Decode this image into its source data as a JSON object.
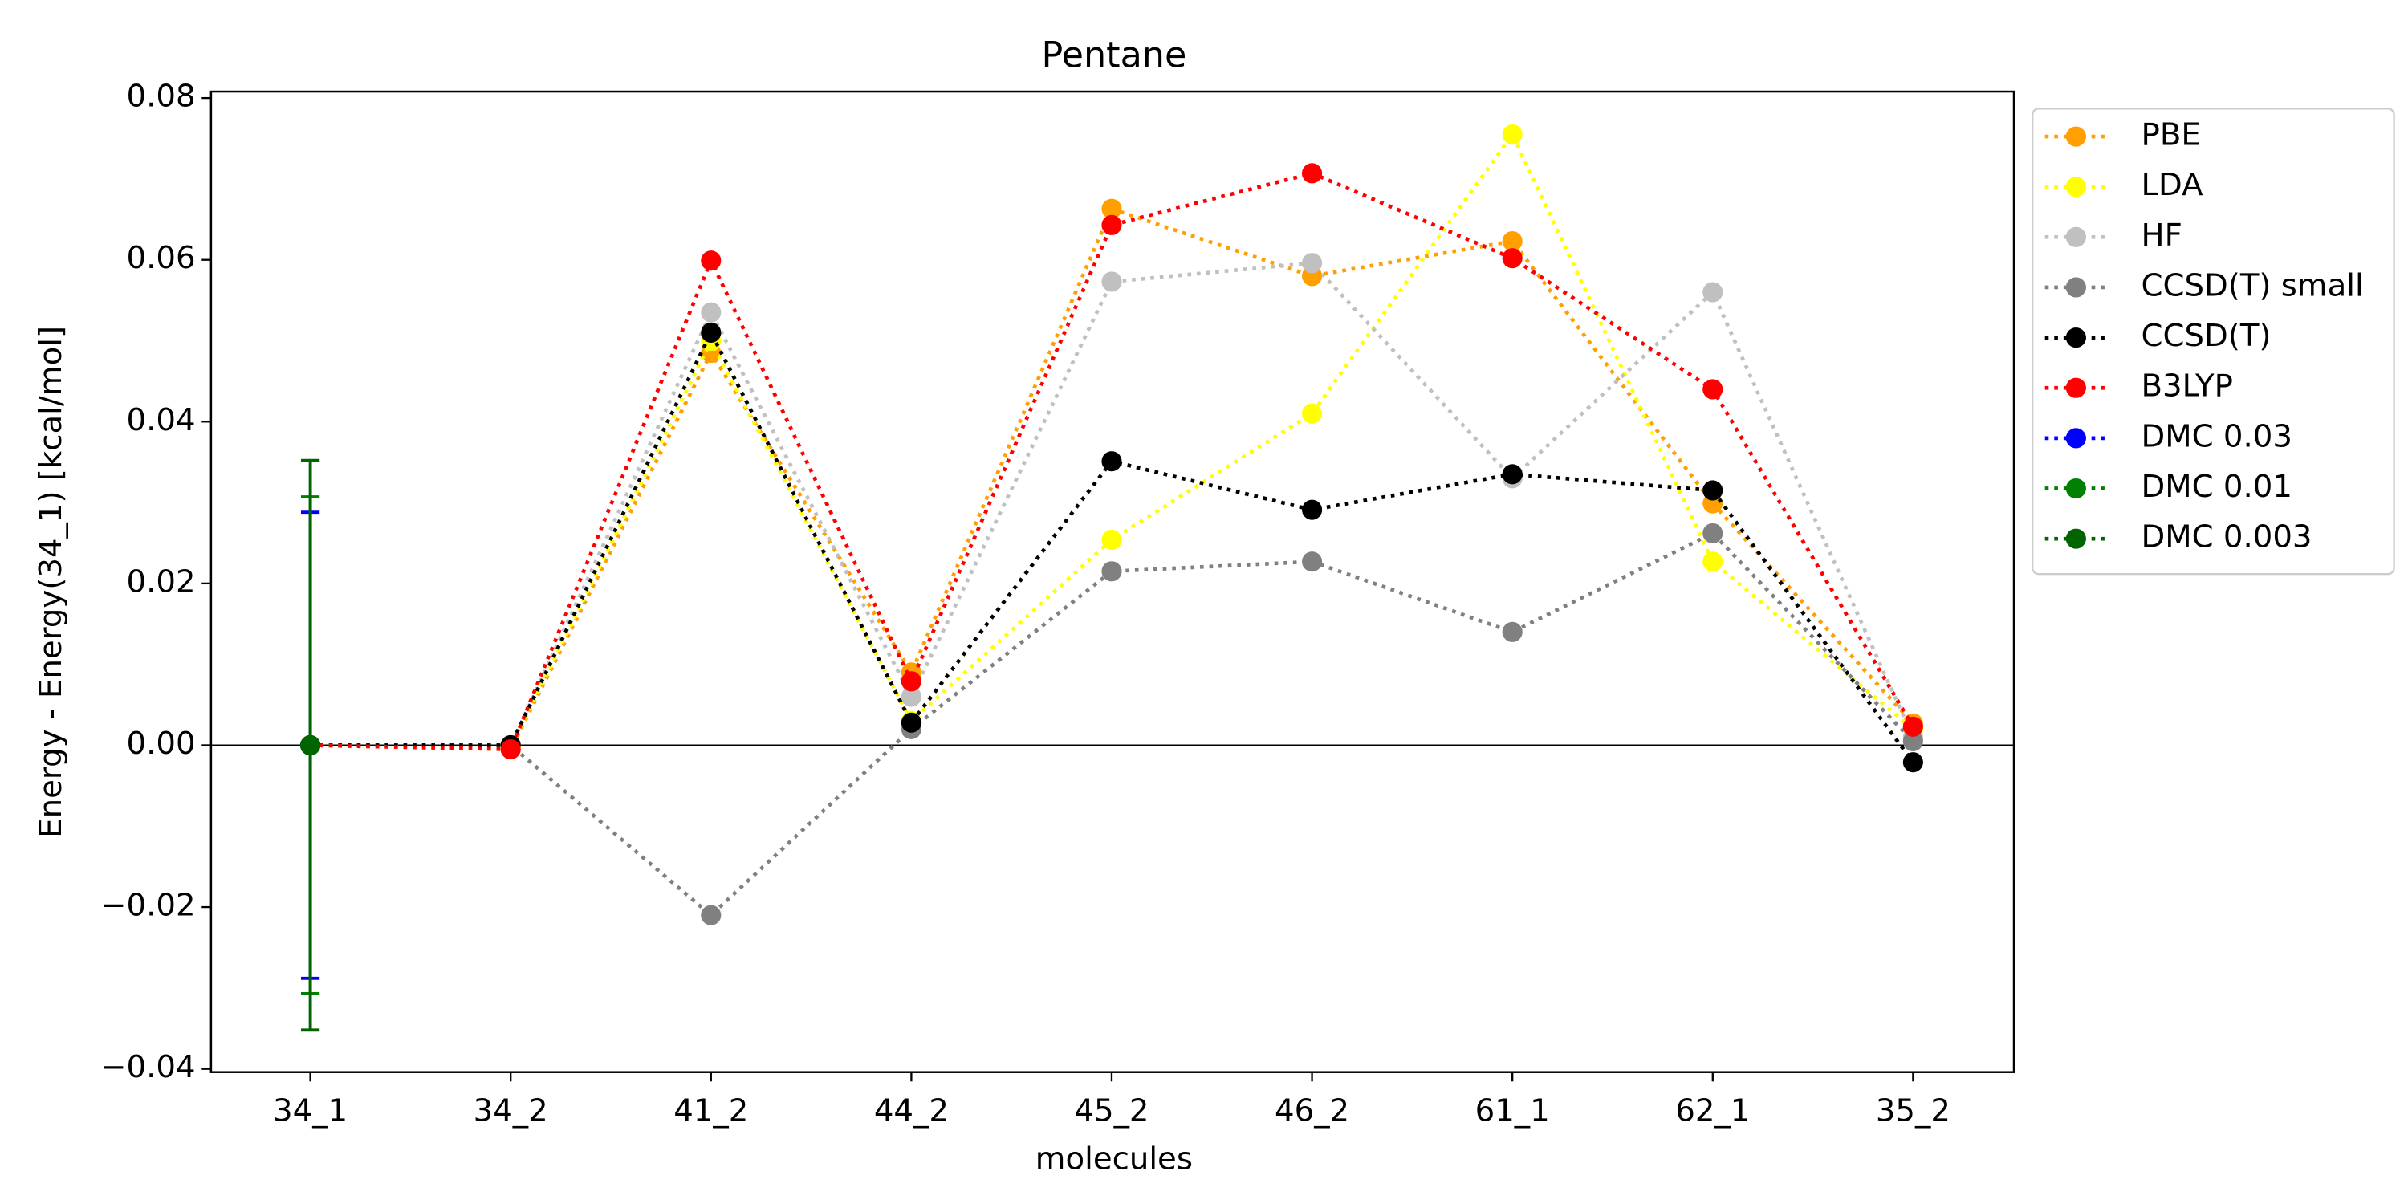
{
  "chart_data": {
    "type": "line",
    "title": "Pentane",
    "xlabel": "molecules",
    "ylabel": "Energy - Energy(34_1) [kcal/mol]",
    "categories": [
      "34_1",
      "34_2",
      "41_2",
      "44_2",
      "45_2",
      "46_2",
      "61_1",
      "62_1",
      "35_2"
    ],
    "ylim": [
      -0.0404,
      0.0808
    ],
    "yticks": [
      {
        "value": -0.04,
        "label": "−0.04"
      },
      {
        "value": -0.02,
        "label": "−0.02"
      },
      {
        "value": 0,
        "label": "0.00"
      },
      {
        "value": 0.02,
        "label": "0.02"
      },
      {
        "value": 0.04,
        "label": "0.04"
      },
      {
        "value": 0.06,
        "label": "0.06"
      },
      {
        "value": 0.08,
        "label": "0.08"
      }
    ],
    "axhline": 0,
    "legend": "outside-upper-right",
    "series": [
      {
        "name": "PBE",
        "color": "#ff9f00",
        "values": [
          0,
          -0.0005,
          0.0485,
          0.009,
          0.0663,
          0.058,
          0.0623,
          0.0299,
          0.0027
        ]
      },
      {
        "name": "LDA",
        "color": "#ffff00",
        "values": [
          0,
          -0.0003,
          0.05,
          0.003,
          0.0254,
          0.041,
          0.0755,
          0.0227,
          0.002
        ]
      },
      {
        "name": "HF",
        "color": "#c0c0c0",
        "values": [
          0,
          0,
          0.0535,
          0.006,
          0.0573,
          0.0596,
          0.033,
          0.056,
          0.001
        ]
      },
      {
        "name": "CCSD(T) small",
        "color": "#808080",
        "values": [
          0,
          0,
          -0.021,
          0.002,
          0.0215,
          0.0227,
          0.014,
          0.0262,
          0.0005
        ]
      },
      {
        "name": "CCSD(T)",
        "color": "#000000",
        "values": [
          0,
          0,
          0.051,
          0.0028,
          0.0351,
          0.0291,
          0.0335,
          0.0315,
          -0.0021
        ]
      },
      {
        "name": "B3LYP",
        "color": "#ff0000",
        "values": [
          0,
          -0.0005,
          0.0599,
          0.0079,
          0.0643,
          0.0707,
          0.0602,
          0.044,
          0.0023
        ]
      },
      {
        "name": "DMC 0.03",
        "color": "#0000ff",
        "values": [
          0,
          null,
          null,
          null,
          null,
          null,
          null,
          null,
          null
        ],
        "errors": [
          0.0288,
          null,
          null,
          null,
          null,
          null,
          null,
          null,
          null
        ]
      },
      {
        "name": "DMC 0.01",
        "color": "#008000",
        "values": [
          0,
          null,
          null,
          null,
          null,
          null,
          null,
          null,
          null
        ],
        "errors": [
          0.0307,
          null,
          null,
          null,
          null,
          null,
          null,
          null,
          null
        ]
      },
      {
        "name": "DMC 0.003",
        "color": "#006400",
        "values": [
          0,
          null,
          null,
          null,
          null,
          null,
          null,
          null,
          null
        ],
        "errors": [
          0.0352,
          null,
          null,
          null,
          null,
          null,
          null,
          null,
          null
        ]
      }
    ]
  }
}
